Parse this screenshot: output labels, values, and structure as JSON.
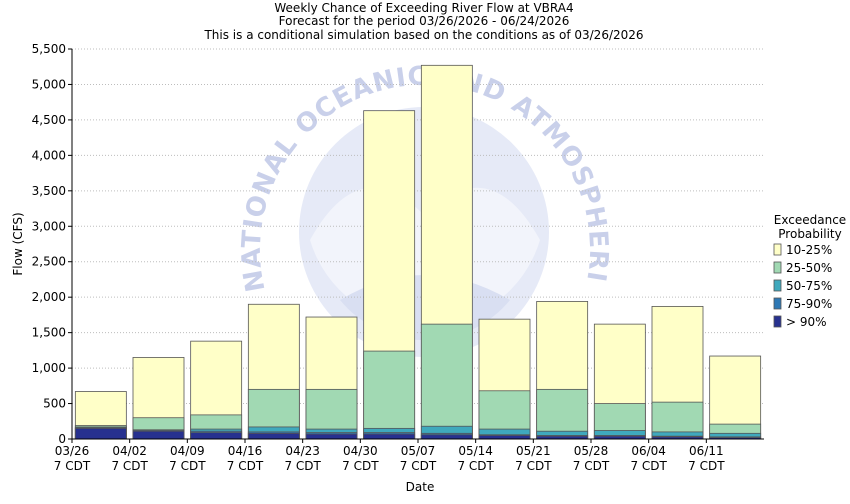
{
  "titles": [
    "Weekly Chance of Exceeding River Flow at VBRA4",
    "Forecast for the period 03/26/2026 - 06/24/2026",
    "This is a conditional simulation based on the conditions as of 03/26/2026"
  ],
  "chart_data": {
    "type": "bar",
    "stacked": true,
    "xlabel": "Date",
    "ylabel": "Flow (CFS)",
    "ylim": [
      0,
      5500
    ],
    "yticks": [
      0,
      500,
      1000,
      1500,
      2000,
      2500,
      3000,
      3500,
      4000,
      4500,
      5000,
      5500
    ],
    "ytick_labels": [
      "0",
      "500",
      "1,000",
      "1,500",
      "2,000",
      "2,500",
      "3,000",
      "3,500",
      "4,000",
      "4,500",
      "5,000",
      "5,500"
    ],
    "grid": "horizontal dotted",
    "categories": [
      "03/26 7 CDT",
      "04/02 7 CDT",
      "04/09 7 CDT",
      "04/16 7 CDT",
      "04/23 7 CDT",
      "04/30 7 CDT",
      "05/07 7 CDT",
      "05/14 7 CDT",
      "05/21 7 CDT",
      "05/28 7 CDT",
      "06/04 7 CDT",
      "06/11 7 CDT"
    ],
    "tick_labels": [
      [
        "03/26",
        "7 CDT"
      ],
      [
        "04/02",
        "7 CDT"
      ],
      [
        "04/09",
        "7 CDT"
      ],
      [
        "04/16",
        "7 CDT"
      ],
      [
        "04/23",
        "7 CDT"
      ],
      [
        "04/30",
        "7 CDT"
      ],
      [
        "05/07",
        "7 CDT"
      ],
      [
        "05/14",
        "7 CDT"
      ],
      [
        "05/21",
        "7 CDT"
      ],
      [
        "05/28",
        "7 CDT"
      ],
      [
        "06/04",
        "7 CDT"
      ],
      [
        "06/11",
        "7 CDT"
      ]
    ],
    "legend_title": [
      "Exceedance",
      "Probability"
    ],
    "legend_position": "right",
    "series": [
      {
        "name": "> 90%",
        "color": "#27318f",
        "upper_values": [
          150,
          110,
          90,
          80,
          70,
          70,
          60,
          50,
          40,
          40,
          30,
          20
        ]
      },
      {
        "name": "75-90%",
        "color": "#2e78b4",
        "upper_values": [
          160,
          120,
          110,
          100,
          90,
          90,
          80,
          60,
          50,
          50,
          40,
          30
        ]
      },
      {
        "name": "50-75%",
        "color": "#3fa9bd",
        "upper_values": [
          170,
          130,
          140,
          170,
          140,
          150,
          180,
          140,
          110,
          120,
          100,
          80
        ]
      },
      {
        "name": "25-50%",
        "color": "#a1d9b3",
        "upper_values": [
          190,
          300,
          340,
          700,
          700,
          1240,
          1620,
          680,
          700,
          500,
          520,
          210
        ]
      },
      {
        "name": "10-25%",
        "color": "#ffffc8",
        "upper_values": [
          670,
          1150,
          1380,
          1900,
          1720,
          4630,
          5270,
          1690,
          1940,
          1620,
          1870,
          1170
        ]
      }
    ]
  },
  "watermark_text": "NATIONAL OCEANIC AND ATMOSPHERIC ADMINISTRATION"
}
